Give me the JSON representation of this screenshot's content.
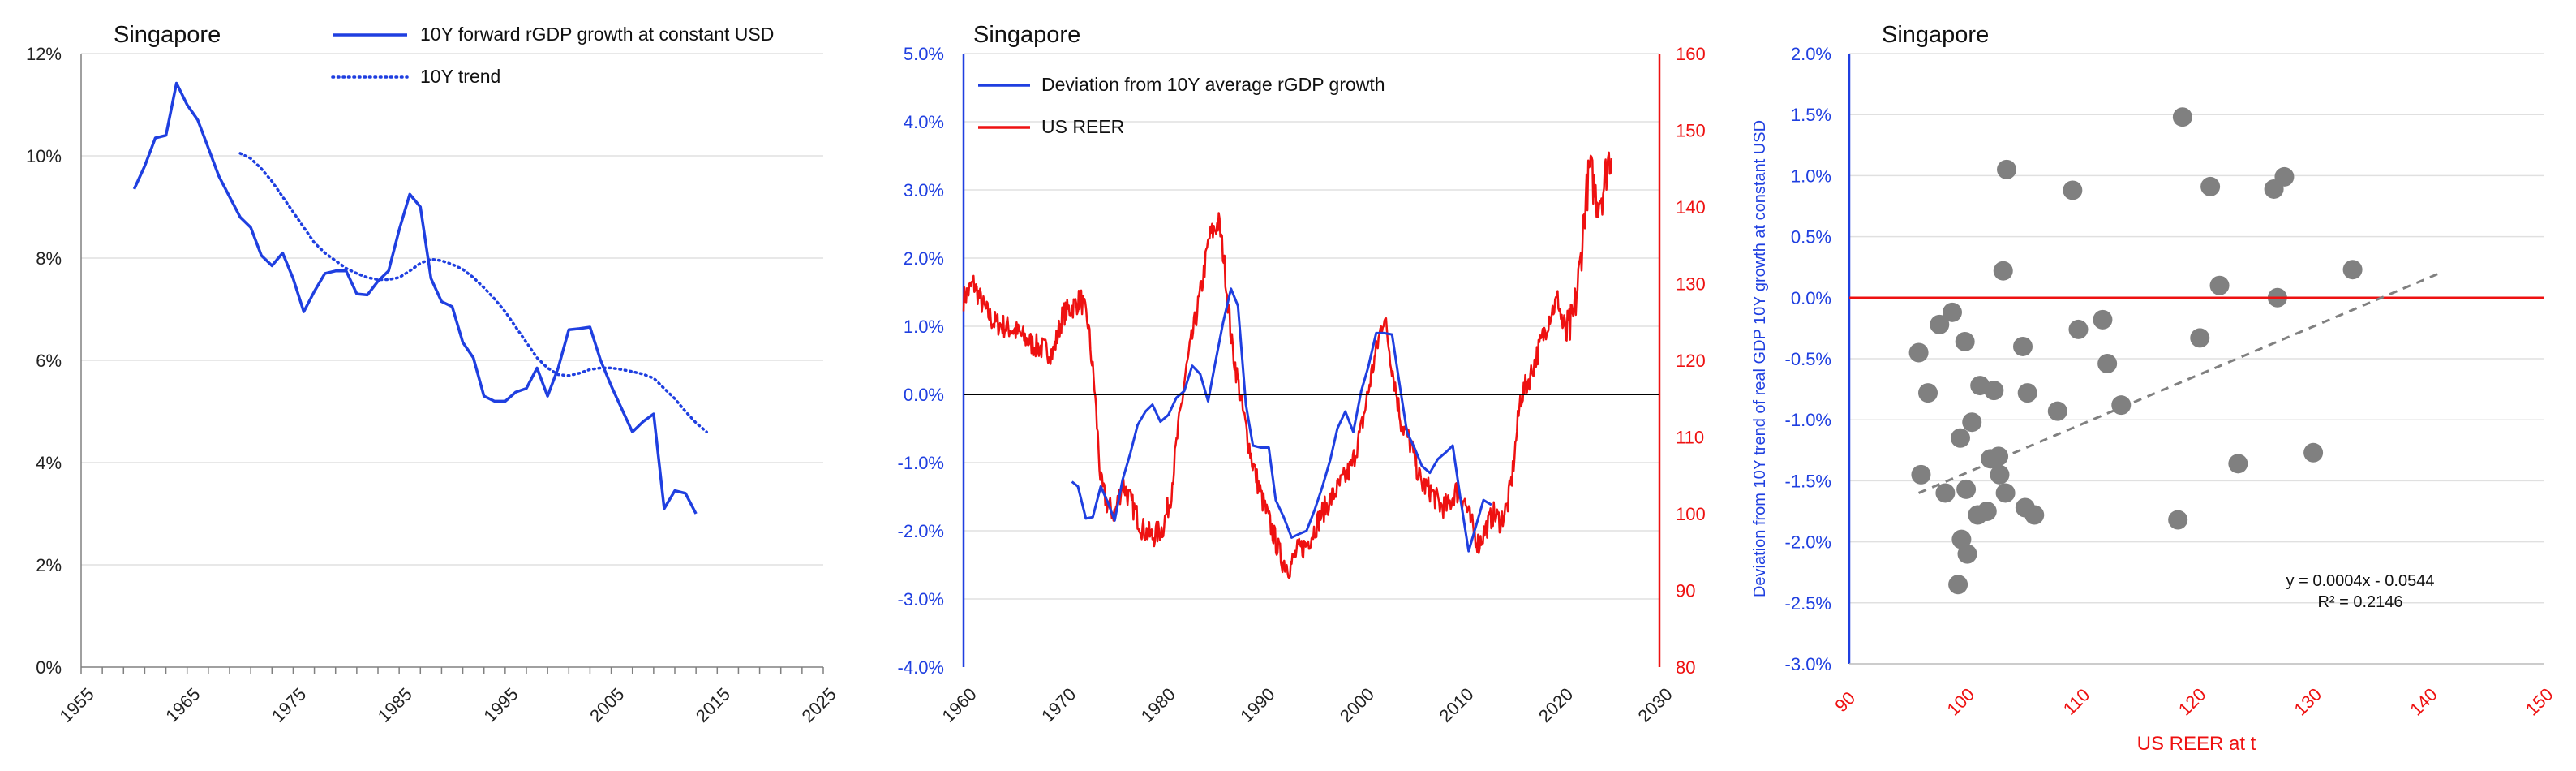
{
  "chart_data": [
    {
      "type": "line",
      "title": "Singapore",
      "xlim": [
        1955,
        2025
      ],
      "ylim": [
        0,
        12
      ],
      "x_ticks": [
        "1955",
        "1965",
        "1975",
        "1985",
        "1995",
        "2005",
        "2015",
        "2025"
      ],
      "y_ticks": [
        "0%",
        "2%",
        "4%",
        "6%",
        "8%",
        "10%",
        "12%"
      ],
      "colors": {
        "series": "#1f3fe0",
        "grid": "#e0e0e0",
        "axis": "#808080"
      },
      "series": [
        {
          "name": "10Y forward rGDP growth at constant USD",
          "style": "solid",
          "x": [
            1960,
            1961,
            1962,
            1963,
            1964,
            1965,
            1966,
            1967,
            1968,
            1969,
            1970,
            1971,
            1972,
            1973,
            1974,
            1975,
            1976,
            1977,
            1978,
            1979,
            1980,
            1981,
            1982,
            1983,
            1984,
            1985,
            1986,
            1987,
            1988,
            1989,
            1990,
            1991,
            1992,
            1993,
            1994,
            1995,
            1996,
            1997,
            1998,
            1999,
            2000,
            2001,
            2002,
            2003,
            2004,
            2005,
            2006,
            2007,
            2008,
            2009,
            2010,
            2011,
            2012,
            2013,
            2014
          ],
          "y": [
            9.35,
            9.8,
            10.35,
            10.4,
            11.42,
            11.0,
            10.7,
            10.15,
            9.6,
            9.2,
            8.8,
            8.6,
            8.05,
            7.85,
            8.1,
            7.6,
            6.95,
            7.35,
            7.7,
            7.75,
            7.75,
            7.3,
            7.28,
            7.55,
            7.75,
            8.55,
            9.25,
            9.0,
            7.6,
            7.15,
            7.05,
            6.35,
            6.05,
            5.3,
            5.2,
            5.2,
            5.38,
            5.45,
            5.85,
            5.3,
            5.85,
            6.6,
            6.62,
            6.65,
            6.0,
            5.5,
            5.05,
            4.6,
            4.8,
            4.95,
            3.1,
            3.45,
            3.4,
            3.0,
            null
          ]
        },
        {
          "name": "10Y trend",
          "style": "dotted",
          "x": [
            1970,
            1971,
            1972,
            1973,
            1974,
            1975,
            1976,
            1977,
            1978,
            1979,
            1980,
            1981,
            1982,
            1983,
            1984,
            1985,
            1986,
            1987,
            1988,
            1989,
            1990,
            1991,
            1992,
            1993,
            1994,
            1995,
            1996,
            1997,
            1998,
            1999,
            2000,
            2001,
            2002,
            2003,
            2004,
            2005,
            2006,
            2007,
            2008,
            2009,
            2010,
            2011,
            2012,
            2013,
            2014
          ],
          "y": [
            10.05,
            9.95,
            9.75,
            9.5,
            9.2,
            8.9,
            8.6,
            8.3,
            8.1,
            7.95,
            7.8,
            7.7,
            7.62,
            7.58,
            7.58,
            7.62,
            7.75,
            7.9,
            7.98,
            7.95,
            7.88,
            7.78,
            7.62,
            7.42,
            7.2,
            6.95,
            6.65,
            6.35,
            6.05,
            5.85,
            5.72,
            5.7,
            5.75,
            5.82,
            5.85,
            5.85,
            5.82,
            5.78,
            5.73,
            5.65,
            5.45,
            5.25,
            5.0,
            4.78,
            4.6
          ]
        }
      ]
    },
    {
      "type": "line",
      "title": "Singapore",
      "xlim": [
        1960,
        2030
      ],
      "ylim_left": [
        -4.0,
        5.0
      ],
      "ylim_right": [
        80,
        160
      ],
      "x_ticks": [
        "1960",
        "1970",
        "1980",
        "1990",
        "2000",
        "2010",
        "2020",
        "2030"
      ],
      "y_ticks_left": [
        "-4.0%",
        "-3.0%",
        "-2.0%",
        "-1.0%",
        "0.0%",
        "1.0%",
        "2.0%",
        "3.0%",
        "4.0%",
        "5.0%"
      ],
      "y_ticks_right": [
        "80",
        "90",
        "100",
        "110",
        "120",
        "130",
        "140",
        "150",
        "160"
      ],
      "colors": {
        "left_axis": "#1f3fe0",
        "right_axis": "#ee1111",
        "grid": "#e0e0e0",
        "zero_line": "#000000"
      },
      "series": [
        {
          "name": "Deviation from 10Y average rGDP growth",
          "axis": "left",
          "x": [
            1970.9,
            1971.5,
            1972.3,
            1973.0,
            1973.8,
            1974.5,
            1975.2,
            1976.0,
            1976.8,
            1977.5,
            1978.3,
            1979.0,
            1979.8,
            1980.6,
            1981.4,
            1982.2,
            1983.0,
            1983.8,
            1984.6,
            1985.3,
            1986.1,
            1986.9,
            1987.6,
            1988.4,
            1989.1,
            1989.9,
            1990.7,
            1991.4,
            1992.2,
            1993.0,
            1993.7,
            1994.5,
            1995.3,
            1996.1,
            1996.9,
            1997.6,
            1998.4,
            1999.2,
            2000.0,
            2000.7,
            2001.5,
            2002.3,
            2003.1,
            2003.8,
            2004.6,
            2005.4,
            2006.1,
            2006.9,
            2007.7,
            2008.5,
            2009.2,
            2010.0,
            2010.8,
            2011.6,
            2012.3,
            2013.1,
            2013.9
          ],
          "y": [
            -1.28,
            -1.35,
            -1.82,
            -1.8,
            -1.35,
            -1.58,
            -1.85,
            -1.25,
            -0.85,
            -0.45,
            -0.25,
            -0.15,
            -0.4,
            -0.3,
            -0.05,
            0.05,
            0.42,
            0.3,
            -0.1,
            0.45,
            1.05,
            1.55,
            1.3,
            -0.15,
            -0.75,
            -0.78,
            -0.78,
            -1.55,
            -1.8,
            -2.1,
            -2.05,
            -2.0,
            -1.7,
            -1.35,
            -0.95,
            -0.5,
            -0.25,
            -0.55,
            0.05,
            0.4,
            0.9,
            0.9,
            0.88,
            0.2,
            -0.55,
            -0.8,
            -1.05,
            -1.15,
            -0.95,
            -0.85,
            -0.75,
            -1.55,
            -2.3,
            -1.9,
            -1.55,
            -1.62,
            null
          ]
        },
        {
          "name": "US REER",
          "axis": "right",
          "anchors_x": [
            1960,
            1961,
            1962,
            1963,
            1965,
            1967,
            1969,
            1970,
            1971,
            1971.8,
            1972.5,
            1973.2,
            1973.8,
            1974.5,
            1975.2,
            1976,
            1977,
            1978,
            1979,
            1980,
            1980.8,
            1981.5,
            1982.3,
            1983,
            1984,
            1984.7,
            1985.2,
            1985.7,
            1986.2,
            1987,
            1988,
            1989,
            1990,
            1991,
            1992,
            1992.8,
            1993.5,
            1994.5,
            1995.3,
            1996,
            1997,
            1998,
            1999,
            2000,
            2001,
            2001.8,
            2002.3,
            2003,
            2004,
            2005,
            2006,
            2007,
            2008,
            2008.8,
            2009.5,
            2010.3,
            2011,
            2011.8,
            2012.5,
            2013.3,
            2014,
            2014.7,
            2015.2,
            2016,
            2017,
            2018,
            2019,
            2019.8,
            2020.5,
            2021.3,
            2022,
            2022.5,
            2023,
            2023.7,
            2024.3,
            2024.8,
            2025.2
          ],
          "anchors_y": [
            128,
            130,
            127,
            125,
            124,
            122,
            121,
            126,
            127,
            128,
            125,
            116,
            104,
            101,
            100,
            104,
            101,
            98,
            97,
            98,
            102,
            110,
            118,
            123,
            130,
            136,
            137,
            138,
            133,
            122,
            114,
            107,
            102,
            98,
            94,
            93,
            95,
            96,
            98,
            100,
            102,
            104,
            106,
            111,
            118,
            123,
            126,
            120,
            112,
            109,
            104,
            103,
            101,
            101,
            103,
            102,
            99,
            96,
            98,
            100,
            99,
            101,
            105,
            115,
            118,
            122,
            126,
            128,
            123,
            125,
            132,
            140,
            145,
            141,
            142,
            146,
            147
          ]
        }
      ]
    },
    {
      "type": "scatter",
      "title": "Singapore",
      "xlabel": "US REER at t",
      "ylabel": "Deviation from 10Y trend of real GDP 10Y growth at constant USD",
      "xlim": [
        90,
        150
      ],
      "ylim": [
        -3.0,
        2.0
      ],
      "x_ticks": [
        "90",
        "100",
        "110",
        "120",
        "130",
        "140",
        "150"
      ],
      "y_ticks": [
        "-3.0%",
        "-2.5%",
        "-2.0%",
        "-1.5%",
        "-1.0%",
        "-0.5%",
        "0.0%",
        "0.5%",
        "1.0%",
        "1.5%",
        "2.0%"
      ],
      "colors": {
        "points": "#808080",
        "trend": "#808080",
        "zero_line": "#ee1111",
        "x_axis_text": "#ee1111",
        "y_axis_text": "#1f3fe0",
        "grid": "#e0e0e0"
      },
      "trendline": {
        "equation": "y = 0.0004x - 0.0544",
        "r2": "R² = 0.2146",
        "x_range": [
          96,
          141
        ]
      },
      "points": [
        {
          "x": 96.0,
          "y": -0.45
        },
        {
          "x": 96.2,
          "y": -1.45
        },
        {
          "x": 96.8,
          "y": -0.78
        },
        {
          "x": 97.8,
          "y": -0.22
        },
        {
          "x": 98.3,
          "y": -1.6
        },
        {
          "x": 98.9,
          "y": -0.12
        },
        {
          "x": 99.4,
          "y": -2.35
        },
        {
          "x": 99.6,
          "y": -1.15
        },
        {
          "x": 99.7,
          "y": -1.98
        },
        {
          "x": 100.0,
          "y": -0.36
        },
        {
          "x": 100.1,
          "y": -1.57
        },
        {
          "x": 100.2,
          "y": -2.1
        },
        {
          "x": 100.6,
          "y": -1.02
        },
        {
          "x": 101.1,
          "y": -1.78
        },
        {
          "x": 101.3,
          "y": -0.72
        },
        {
          "x": 101.9,
          "y": -1.75
        },
        {
          "x": 102.2,
          "y": -1.32
        },
        {
          "x": 102.5,
          "y": -0.76
        },
        {
          "x": 102.9,
          "y": -1.3
        },
        {
          "x": 103.0,
          "y": -1.45
        },
        {
          "x": 103.3,
          "y": 0.22
        },
        {
          "x": 103.5,
          "y": -1.6
        },
        {
          "x": 103.6,
          "y": 1.05
        },
        {
          "x": 105.0,
          "y": -0.4
        },
        {
          "x": 105.2,
          "y": -1.72
        },
        {
          "x": 105.4,
          "y": -0.78
        },
        {
          "x": 106.0,
          "y": -1.78
        },
        {
          "x": 108.0,
          "y": -0.93
        },
        {
          "x": 109.3,
          "y": 0.88
        },
        {
          "x": 109.8,
          "y": -0.26
        },
        {
          "x": 111.9,
          "y": -0.18
        },
        {
          "x": 112.3,
          "y": -0.54
        },
        {
          "x": 113.5,
          "y": -0.88
        },
        {
          "x": 118.4,
          "y": -1.82
        },
        {
          "x": 118.8,
          "y": 1.48
        },
        {
          "x": 120.3,
          "y": -0.33
        },
        {
          "x": 121.2,
          "y": 0.91
        },
        {
          "x": 122.0,
          "y": 0.1
        },
        {
          "x": 123.6,
          "y": -1.36
        },
        {
          "x": 126.7,
          "y": 0.89
        },
        {
          "x": 127.0,
          "y": 0.0
        },
        {
          "x": 127.6,
          "y": 0.99
        },
        {
          "x": 130.1,
          "y": -1.27
        },
        {
          "x": 133.5,
          "y": 0.23
        }
      ]
    }
  ]
}
